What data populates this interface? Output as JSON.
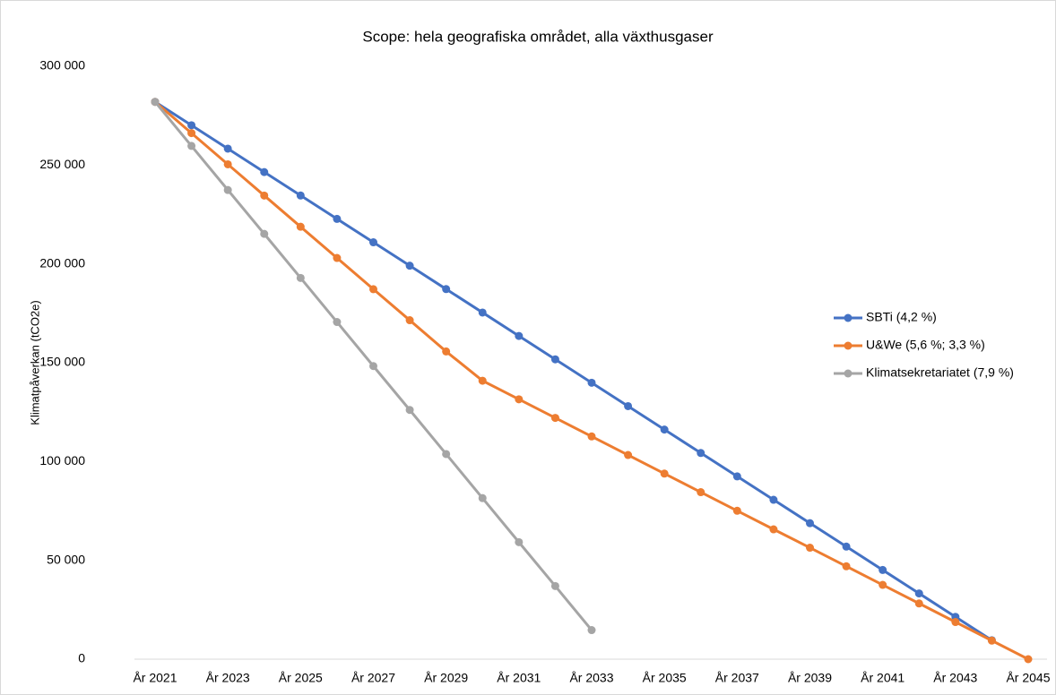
{
  "chart_data": {
    "type": "line",
    "title": "Scope: hela geografiska området, alla växthusgaser",
    "y_label": "Klimatpåverkan (tCO2e)",
    "categories": [
      "År 2021",
      null,
      "År 2023",
      null,
      "År 2025",
      null,
      "År 2027",
      null,
      "År 2029",
      null,
      "År 2031",
      null,
      "År 2033",
      null,
      "År 2035",
      null,
      "År 2037",
      null,
      "År 2039",
      null,
      "År 2041",
      null,
      "År 2043",
      null,
      "År 2045"
    ],
    "series": [
      {
        "name": "SBTi (4,2 %)",
        "color": "#4472c4",
        "values": [
          282000,
          270156,
          258312,
          246468,
          234624,
          222780,
          210936,
          199092,
          187248,
          175404,
          163560,
          151716,
          139872,
          128028,
          116184,
          104340,
          92496,
          80652,
          68808,
          56964,
          45120,
          33276,
          21432,
          9588,
          null
        ]
      },
      {
        "name": "U&We (5,6 %; 3,3 %)",
        "color": "#ed7d31",
        "values": [
          282000,
          266200,
          250400,
          234600,
          218800,
          203000,
          187200,
          171500,
          155700,
          140900,
          131500,
          122100,
          112700,
          103300,
          93900,
          84500,
          75100,
          65700,
          56400,
          47000,
          37600,
          28200,
          18800,
          9400,
          0
        ]
      },
      {
        "name": "Klimatsekretariatet (7,9 %)",
        "color": "#a5a5a5",
        "values": [
          282000,
          259700,
          237400,
          215200,
          192900,
          170600,
          148300,
          126100,
          103800,
          81500,
          59200,
          37000,
          14700,
          null,
          null,
          null,
          null,
          null,
          null,
          null,
          null,
          null,
          null,
          null,
          null
        ]
      }
    ],
    "ylim": [
      0,
      300000
    ],
    "yticks": [
      {
        "value": 0,
        "label": "0"
      },
      {
        "value": 50000,
        "label": "50 000"
      },
      {
        "value": 100000,
        "label": "100 000"
      },
      {
        "value": 150000,
        "label": "150 000"
      },
      {
        "value": 200000,
        "label": "200 000"
      },
      {
        "value": 250000,
        "label": "250 000"
      },
      {
        "value": 300000,
        "label": "300 000"
      }
    ],
    "legend": "right"
  }
}
